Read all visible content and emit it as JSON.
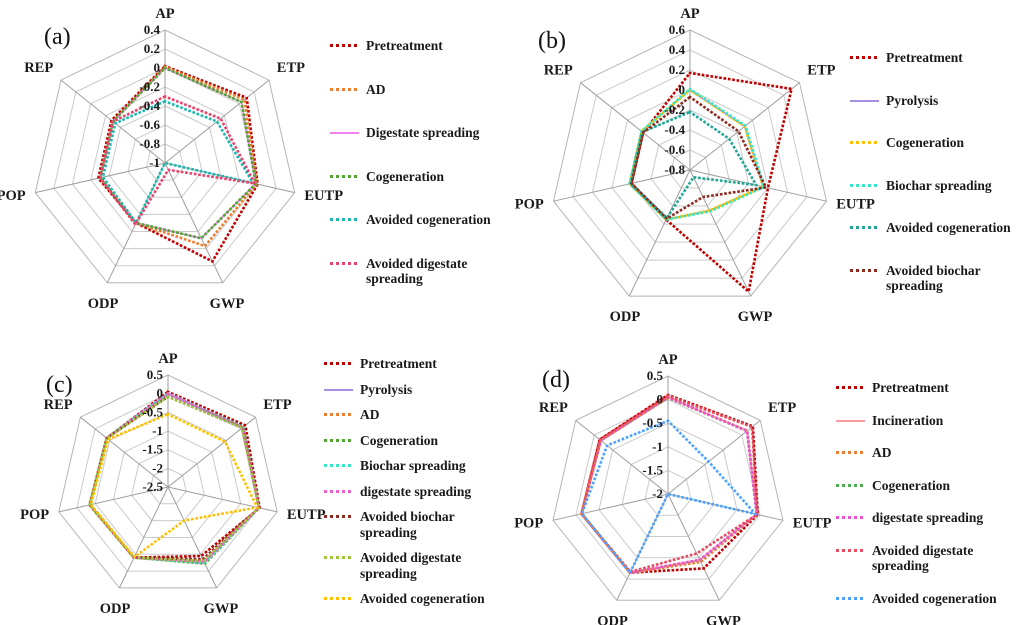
{
  "figure_background": "#ffffff",
  "chart_data": [
    {
      "type": "radar",
      "panel": "(a)",
      "axes": [
        "AP",
        "ETP",
        "EUTP",
        "GWP",
        "ODP",
        "POP",
        "REP"
      ],
      "ticks": [
        0.4,
        0.2,
        0,
        -0.2,
        -0.4,
        -0.6,
        -0.8,
        -1
      ],
      "max": 0.4,
      "min": -1,
      "grid": "heptagonal rings, gray",
      "legend_position": "right",
      "series": [
        {
          "name": "Pretreatment",
          "color": "#c00000",
          "style": "dotted",
          "values": [
            0.02,
            0.1,
            0.0,
            0.15,
            -0.3,
            -0.28,
            -0.28
          ]
        },
        {
          "name": "AD",
          "color": "#ed7d31",
          "style": "dotted",
          "values": [
            0.01,
            0.07,
            -0.01,
            -0.03,
            -0.3,
            -0.3,
            -0.3
          ]
        },
        {
          "name": "Digestate spreading",
          "color": "#ee82ee",
          "style": "solid",
          "values": [
            0.0,
            0.03,
            -0.02,
            -0.12,
            -0.3,
            -0.3,
            -0.3
          ]
        },
        {
          "name": "Cogeneration",
          "color": "#4ea72e",
          "style": "dotted",
          "values": [
            0.0,
            0.03,
            -0.02,
            -0.12,
            -0.3,
            -0.3,
            -0.3
          ]
        },
        {
          "name": "Avoided cogeneration",
          "color": "#1cb8b0",
          "style": "dotted",
          "values": [
            -0.35,
            -0.3,
            -0.05,
            -1.0,
            -0.3,
            -0.33,
            -0.33
          ]
        },
        {
          "name": "Avoided digestate spreading",
          "color": "#e8436a",
          "style": "dotted",
          "values": [
            -0.3,
            -0.25,
            -0.03,
            -0.92,
            -0.28,
            -0.3,
            -0.3
          ]
        }
      ]
    },
    {
      "type": "radar",
      "panel": "(b)",
      "axes": [
        "AP",
        "ETP",
        "EUTP",
        "GWP",
        "ODP",
        "POP",
        "REP"
      ],
      "ticks": [
        0.6,
        0.4,
        0.2,
        0,
        -0.2,
        -0.4,
        -0.6,
        -0.8
      ],
      "max": 0.6,
      "min": -0.8,
      "grid": "heptagonal rings, gray",
      "legend_position": "right",
      "series": [
        {
          "name": "Pretreatment",
          "color": "#c00000",
          "style": "dotted",
          "values": [
            0.17,
            0.5,
            0.0,
            0.55,
            -0.25,
            -0.2,
            -0.2
          ]
        },
        {
          "name": "Pyrolysis",
          "color": "#a78fe3",
          "style": "solid",
          "values": [
            0.0,
            -0.1,
            -0.05,
            -0.35,
            -0.25,
            -0.18,
            -0.18
          ]
        },
        {
          "name": "Cogeneration",
          "color": "#ffc000",
          "style": "dotted",
          "values": [
            0.0,
            -0.1,
            -0.05,
            -0.35,
            -0.25,
            -0.18,
            -0.18
          ]
        },
        {
          "name": "Biochar spreading",
          "color": "#35e8c9",
          "style": "dotted",
          "values": [
            0.01,
            -0.09,
            -0.04,
            -0.34,
            -0.25,
            -0.18,
            -0.18
          ]
        },
        {
          "name": "Avoided cogeneration",
          "color": "#21a695",
          "style": "dotted",
          "values": [
            -0.22,
            -0.3,
            -0.12,
            -0.72,
            -0.27,
            -0.19,
            -0.19
          ]
        },
        {
          "name": "Avoided biochar spreading",
          "color": "#8f2a20",
          "style": "dotted",
          "values": [
            -0.07,
            -0.18,
            -0.02,
            -0.5,
            -0.26,
            -0.2,
            -0.2
          ]
        }
      ]
    },
    {
      "type": "radar",
      "panel": "(c)",
      "axes": [
        "AP",
        "ETP",
        "EUTP",
        "GWP",
        "ODP",
        "POP",
        "REP"
      ],
      "ticks": [
        0.5,
        0,
        -0.5,
        -1,
        -1.5,
        -2,
        -2.5
      ],
      "max": 0.5,
      "min": -2.5,
      "grid": "heptagonal rings, gray",
      "legend_position": "right",
      "series": [
        {
          "name": "Pretreatment",
          "color": "#c00000",
          "style": "dotted",
          "values": [
            0.05,
            0.15,
            0.02,
            -0.45,
            -0.4,
            -0.35,
            -0.4
          ]
        },
        {
          "name": "Pyrolysis",
          "color": "#a78fe3",
          "style": "solid",
          "values": [
            0.0,
            0.07,
            0.0,
            -0.25,
            -0.4,
            -0.35,
            -0.4
          ]
        },
        {
          "name": "AD",
          "color": "#ed7d31",
          "style": "dotted",
          "values": [
            0.0,
            0.07,
            0.0,
            -0.25,
            -0.4,
            -0.35,
            -0.4
          ]
        },
        {
          "name": "Cogeneration",
          "color": "#4ea72e",
          "style": "dotted",
          "values": [
            0.0,
            0.08,
            0.0,
            -0.22,
            -0.4,
            -0.35,
            -0.4
          ]
        },
        {
          "name": "Biochar spreading",
          "color": "#35e8c9",
          "style": "dotted",
          "values": [
            0.01,
            0.07,
            0.0,
            -0.25,
            -0.4,
            -0.35,
            -0.4
          ]
        },
        {
          "name": "digestate spreading",
          "color": "#ef5fd0",
          "style": "dotted",
          "values": [
            0.0,
            0.06,
            0.0,
            -0.28,
            -0.4,
            -0.35,
            -0.4
          ]
        },
        {
          "name": "Avoided biochar spreading",
          "color": "#8f2a20",
          "style": "dotted",
          "values": [
            -0.08,
            0.05,
            0.0,
            -0.35,
            -0.4,
            -0.35,
            -0.4
          ]
        },
        {
          "name": "Avoided digestate spreading",
          "color": "#9fc53c",
          "style": "dotted",
          "values": [
            -0.08,
            0.04,
            0.0,
            -0.3,
            -0.4,
            -0.35,
            -0.4
          ]
        },
        {
          "name": "Avoided cogeneration",
          "color": "#ffc000",
          "style": "dotted",
          "values": [
            -0.55,
            -0.55,
            -0.05,
            -1.5,
            -0.42,
            -0.38,
            -0.45
          ]
        }
      ]
    },
    {
      "type": "radar",
      "panel": "(d)",
      "axes": [
        "AP",
        "ETP",
        "EUTP",
        "GWP",
        "ODP",
        "POP",
        "REP"
      ],
      "ticks": [
        0.5,
        0,
        -0.5,
        -1,
        -1.5,
        -2
      ],
      "max": 0.5,
      "min": -2,
      "grid": "heptagonal rings, gray",
      "legend_position": "right",
      "series": [
        {
          "name": "Pretreatment",
          "color": "#c00000",
          "style": "dotted",
          "values": [
            0.1,
            0.3,
            -0.05,
            -0.25,
            -0.15,
            -0.12,
            -0.15
          ]
        },
        {
          "name": "Incineration",
          "color": "#f89ba3",
          "style": "solid",
          "values": [
            0.05,
            0.15,
            -0.07,
            -0.45,
            -0.15,
            -0.12,
            -0.18
          ]
        },
        {
          "name": "AD",
          "color": "#ed7d31",
          "style": "dotted",
          "values": [
            0.04,
            0.15,
            -0.07,
            -0.4,
            -0.15,
            -0.12,
            -0.18
          ]
        },
        {
          "name": "Cogeneration",
          "color": "#4caf50",
          "style": "dotted",
          "values": [
            0.04,
            0.14,
            -0.07,
            -0.45,
            -0.15,
            -0.12,
            -0.18
          ]
        },
        {
          "name": "digestate spreading",
          "color": "#f050d8",
          "style": "dotted",
          "values": [
            0.05,
            0.14,
            -0.07,
            -0.45,
            -0.15,
            -0.12,
            -0.18
          ]
        },
        {
          "name": "Avoided digestate spreading",
          "color": "#e84a5f",
          "style": "dotted",
          "values": [
            0.08,
            0.28,
            -0.06,
            -0.6,
            -0.17,
            -0.12,
            -0.15
          ]
        },
        {
          "name": "Avoided cogeneration",
          "color": "#4da3ff",
          "style": "dotted",
          "values": [
            -0.45,
            -0.9,
            -0.1,
            -2.0,
            -0.15,
            -0.13,
            -0.35
          ]
        }
      ]
    }
  ]
}
